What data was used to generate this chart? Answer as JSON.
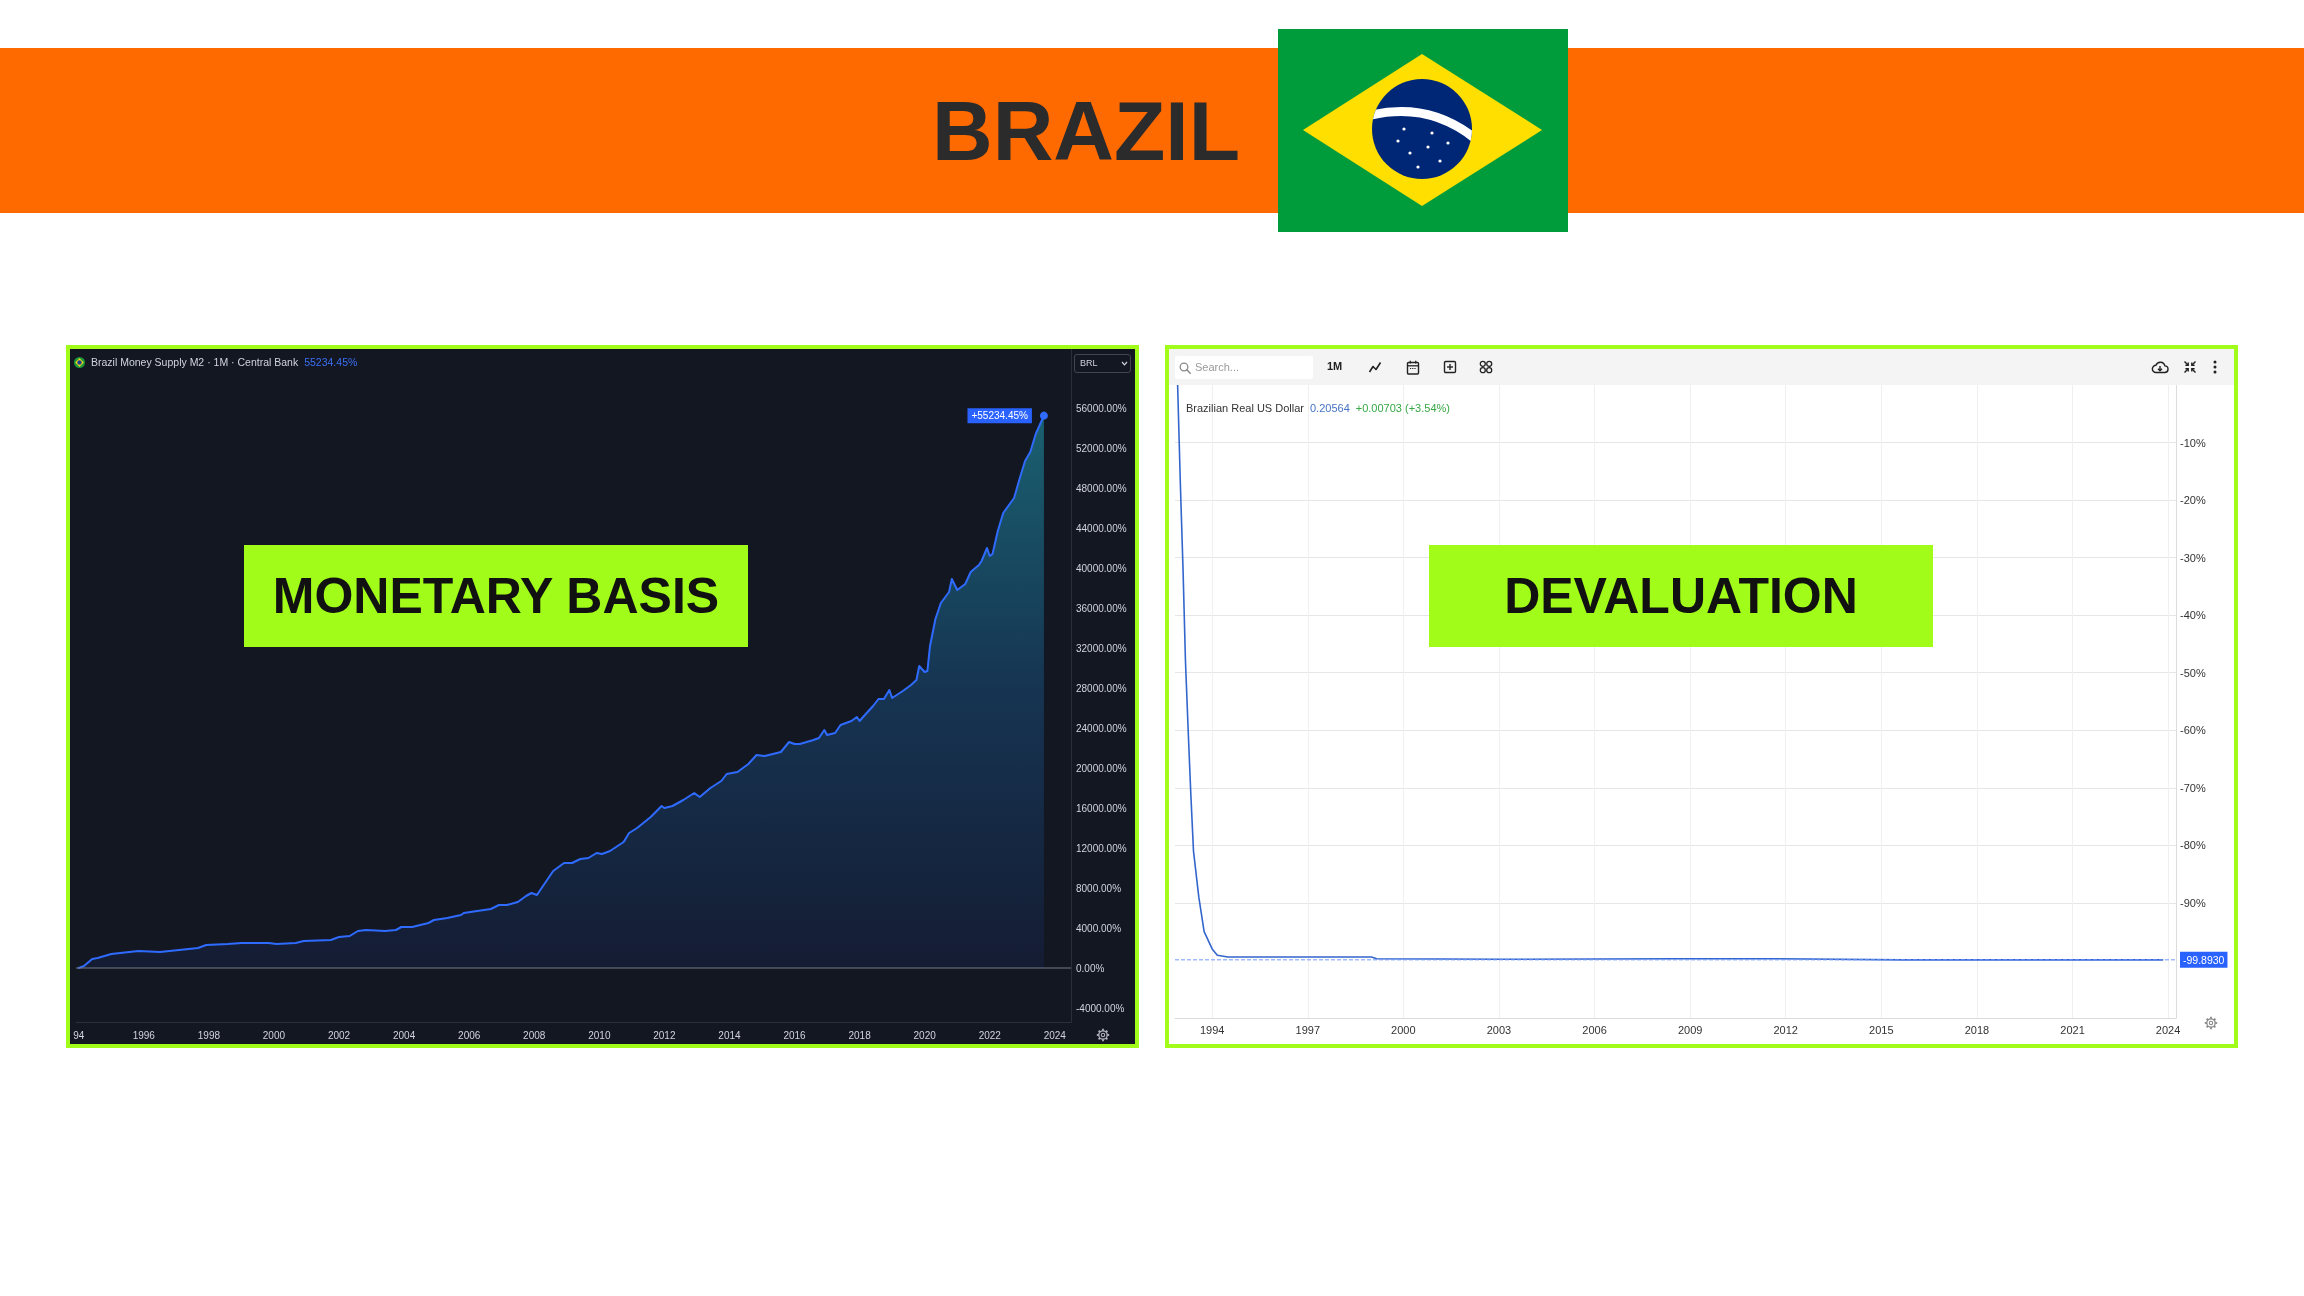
{
  "chart_data": [
    {
      "type": "other",
      "title": "BRAZIL"
    },
    {
      "type": "area",
      "title": "MONETARY BASIS",
      "subtitle": "Brazil Money Supply M2 · 1M · Central Bank",
      "color": "#2f6bff",
      "marker": "none",
      "x": [
        "1994-01",
        "1994-03",
        "1994-06",
        "1994-08",
        "1995-01",
        "1995-11",
        "1996-07",
        "1997-02",
        "1997-09",
        "1997-12",
        "1998-08",
        "1999-01",
        "1999-11",
        "2000-02",
        "2000-09",
        "2000-12",
        "2001-10",
        "2002-01",
        "2002-05",
        "2002-08",
        "2002-11",
        "2003-06",
        "2003-10",
        "2003-12",
        "2004-04",
        "2004-07",
        "2004-10",
        "2004-12",
        "2005-05",
        "2005-10",
        "2005-11",
        "2006-04",
        "2006-09",
        "2006-12",
        "2007-03",
        "2007-07",
        "2007-10",
        "2007-12",
        "2008-02",
        "2008-04",
        "2008-08",
        "2008-12",
        "2009-03",
        "2009-06",
        "2009-09",
        "2009-12",
        "2010-02",
        "2010-04",
        "2010-05",
        "2010-10",
        "2010-12",
        "2011-03",
        "2011-08",
        "2011-12",
        "2012-01",
        "2012-04",
        "2012-08",
        "2012-12",
        "2013-02",
        "2013-06",
        "2013-10",
        "2013-12",
        "2014-04",
        "2014-08",
        "2014-11",
        "2015-02",
        "2015-08",
        "2015-11",
        "2016-01",
        "2016-03",
        "2016-08",
        "2016-10",
        "2016-12",
        "2017-01",
        "2017-04",
        "2017-06",
        "2017-10",
        "2017-12",
        "2018-01",
        "2018-03",
        "2018-06",
        "2018-08",
        "2018-10",
        "2018-12",
        "2019-01",
        "2019-05",
        "2019-08",
        "2019-10",
        "2019-11",
        "2020-01",
        "2020-02",
        "2020-03",
        "2020-05",
        "2020-07",
        "2020-10",
        "2020-11",
        "2021-01",
        "2021-04",
        "2021-06",
        "2021-09",
        "2021-10",
        "2021-12",
        "2022-01",
        "2022-02",
        "2022-04",
        "2022-06",
        "2022-10",
        "2022-12",
        "2023-02",
        "2023-04",
        "2023-06",
        "2023-09"
      ],
      "values": [
        0,
        200,
        900,
        1000,
        1400,
        1700,
        1600,
        1800,
        2000,
        2300,
        2400,
        2500,
        2500,
        2400,
        2500,
        2700,
        2800,
        3100,
        3200,
        3700,
        3800,
        3700,
        3800,
        4100,
        4100,
        4300,
        4500,
        4800,
        5000,
        5300,
        5500,
        5700,
        5900,
        6300,
        6300,
        6600,
        7200,
        7500,
        7300,
        8100,
        9700,
        10500,
        10500,
        10900,
        11000,
        11500,
        11400,
        11600,
        11700,
        12600,
        13500,
        14000,
        15100,
        16200,
        16000,
        16200,
        16800,
        17500,
        17100,
        18000,
        18700,
        19400,
        19600,
        20400,
        21300,
        21200,
        21600,
        22600,
        22400,
        22400,
        22800,
        23000,
        23800,
        23300,
        23500,
        24300,
        24700,
        25100,
        24700,
        25300,
        26200,
        26900,
        26900,
        27800,
        27000,
        27700,
        28300,
        28800,
        30200,
        29600,
        29700,
        32200,
        34900,
        36500,
        37600,
        38900,
        37800,
        38400,
        39600,
        40300,
        40700,
        42000,
        41200,
        41400,
        43700,
        45500,
        47000,
        48900,
        50700,
        51600,
        53400,
        55234.45
      ],
      "xlim": [
        "1993-12",
        "2024-07"
      ],
      "xticks": [
        {
          "value": "1994",
          "label": "94"
        },
        "1996",
        "1998",
        "2000",
        "2002",
        "2004",
        "2006",
        "2008",
        "2010",
        "2012",
        "2014",
        "2016",
        "2018",
        "2020",
        "2022",
        "2024"
      ],
      "ylim": [
        -5400,
        61900
      ],
      "yticks": [
        {
          "value": -4000,
          "label": "-4000.00%"
        },
        {
          "value": 0,
          "label": "0.00%"
        },
        {
          "value": 4000,
          "label": "4000.00%"
        },
        {
          "value": 8000,
          "label": "8000.00%"
        },
        {
          "value": 12000,
          "label": "12000.00%"
        },
        {
          "value": 16000,
          "label": "16000.00%"
        },
        {
          "value": 20000,
          "label": "20000.00%"
        },
        {
          "value": 24000,
          "label": "24000.00%"
        },
        {
          "value": 28000,
          "label": "28000.00%"
        },
        {
          "value": 32000,
          "label": "32000.00%"
        },
        {
          "value": 36000,
          "label": "36000.00%"
        },
        {
          "value": 40000,
          "label": "40000.00%"
        },
        {
          "value": 44000,
          "label": "44000.00%"
        },
        {
          "value": 48000,
          "label": "48000.00%"
        },
        {
          "value": 52000,
          "label": "52000.00%"
        },
        {
          "value": 56000,
          "label": "56000.00%"
        }
      ],
      "ref_lines": [
        {
          "axis": "y",
          "value": 0,
          "color": "#787b86"
        }
      ],
      "annotations": [
        "55234.45%",
        {
          "text": "+55234.45%",
          "x": "2023-09",
          "y": 55234.45
        },
        "BRL"
      ]
    },
    {
      "type": "line",
      "title": "DEVALUATION",
      "subtitle": "Brazilian Real US Dollar",
      "color": "#3366cc",
      "marker": "none",
      "grid": true,
      "x": [
        "1992-12",
        "1993-01",
        "1993-02",
        "1993-03",
        "1993-04",
        "1993-05",
        "1993-06",
        "1993-08",
        "1993-10",
        "1994-01",
        "1994-03",
        "1994-07",
        "1996-06",
        "1999-01",
        "1999-03",
        "2003-01",
        "2008-07",
        "2011-07",
        "2015-09",
        "2020-05",
        "2023-11"
      ],
      "values": [
        0,
        -17,
        -32,
        -48,
        -60,
        -71,
        -81,
        -89,
        -95,
        -98,
        -99.1,
        -99.4,
        -99.4,
        -99.4,
        -99.7,
        -99.8,
        -99.7,
        -99.7,
        -99.9,
        -99.9,
        -99.893
      ],
      "xlim": [
        "1992-11",
        "2024-04"
      ],
      "xticks": [
        "1994",
        "1997",
        "2000",
        "2003",
        "2006",
        "2009",
        "2012",
        "2015",
        "2018",
        "2021",
        "2024"
      ],
      "ylim": [
        -110,
        0
      ],
      "yticks": [
        {
          "value": -90,
          "label": "-90%"
        },
        {
          "value": -80,
          "label": "-80%"
        },
        {
          "value": -70,
          "label": "-70%"
        },
        {
          "value": -60,
          "label": "-60%"
        },
        {
          "value": -50,
          "label": "-50%"
        },
        {
          "value": -40,
          "label": "-40%"
        },
        {
          "value": -30,
          "label": "-30%"
        },
        {
          "value": -20,
          "label": "-20%"
        },
        {
          "value": -10,
          "label": "-10%"
        }
      ],
      "ref_lines": [
        {
          "axis": "y",
          "value": -99.893,
          "label": "-99.8930",
          "line_style": "dashed",
          "color": "#6f97ff"
        }
      ],
      "annotations": [
        "0.20564",
        "+0.00703 (+3.54%)",
        "Search...",
        "1M"
      ]
    }
  ]
}
